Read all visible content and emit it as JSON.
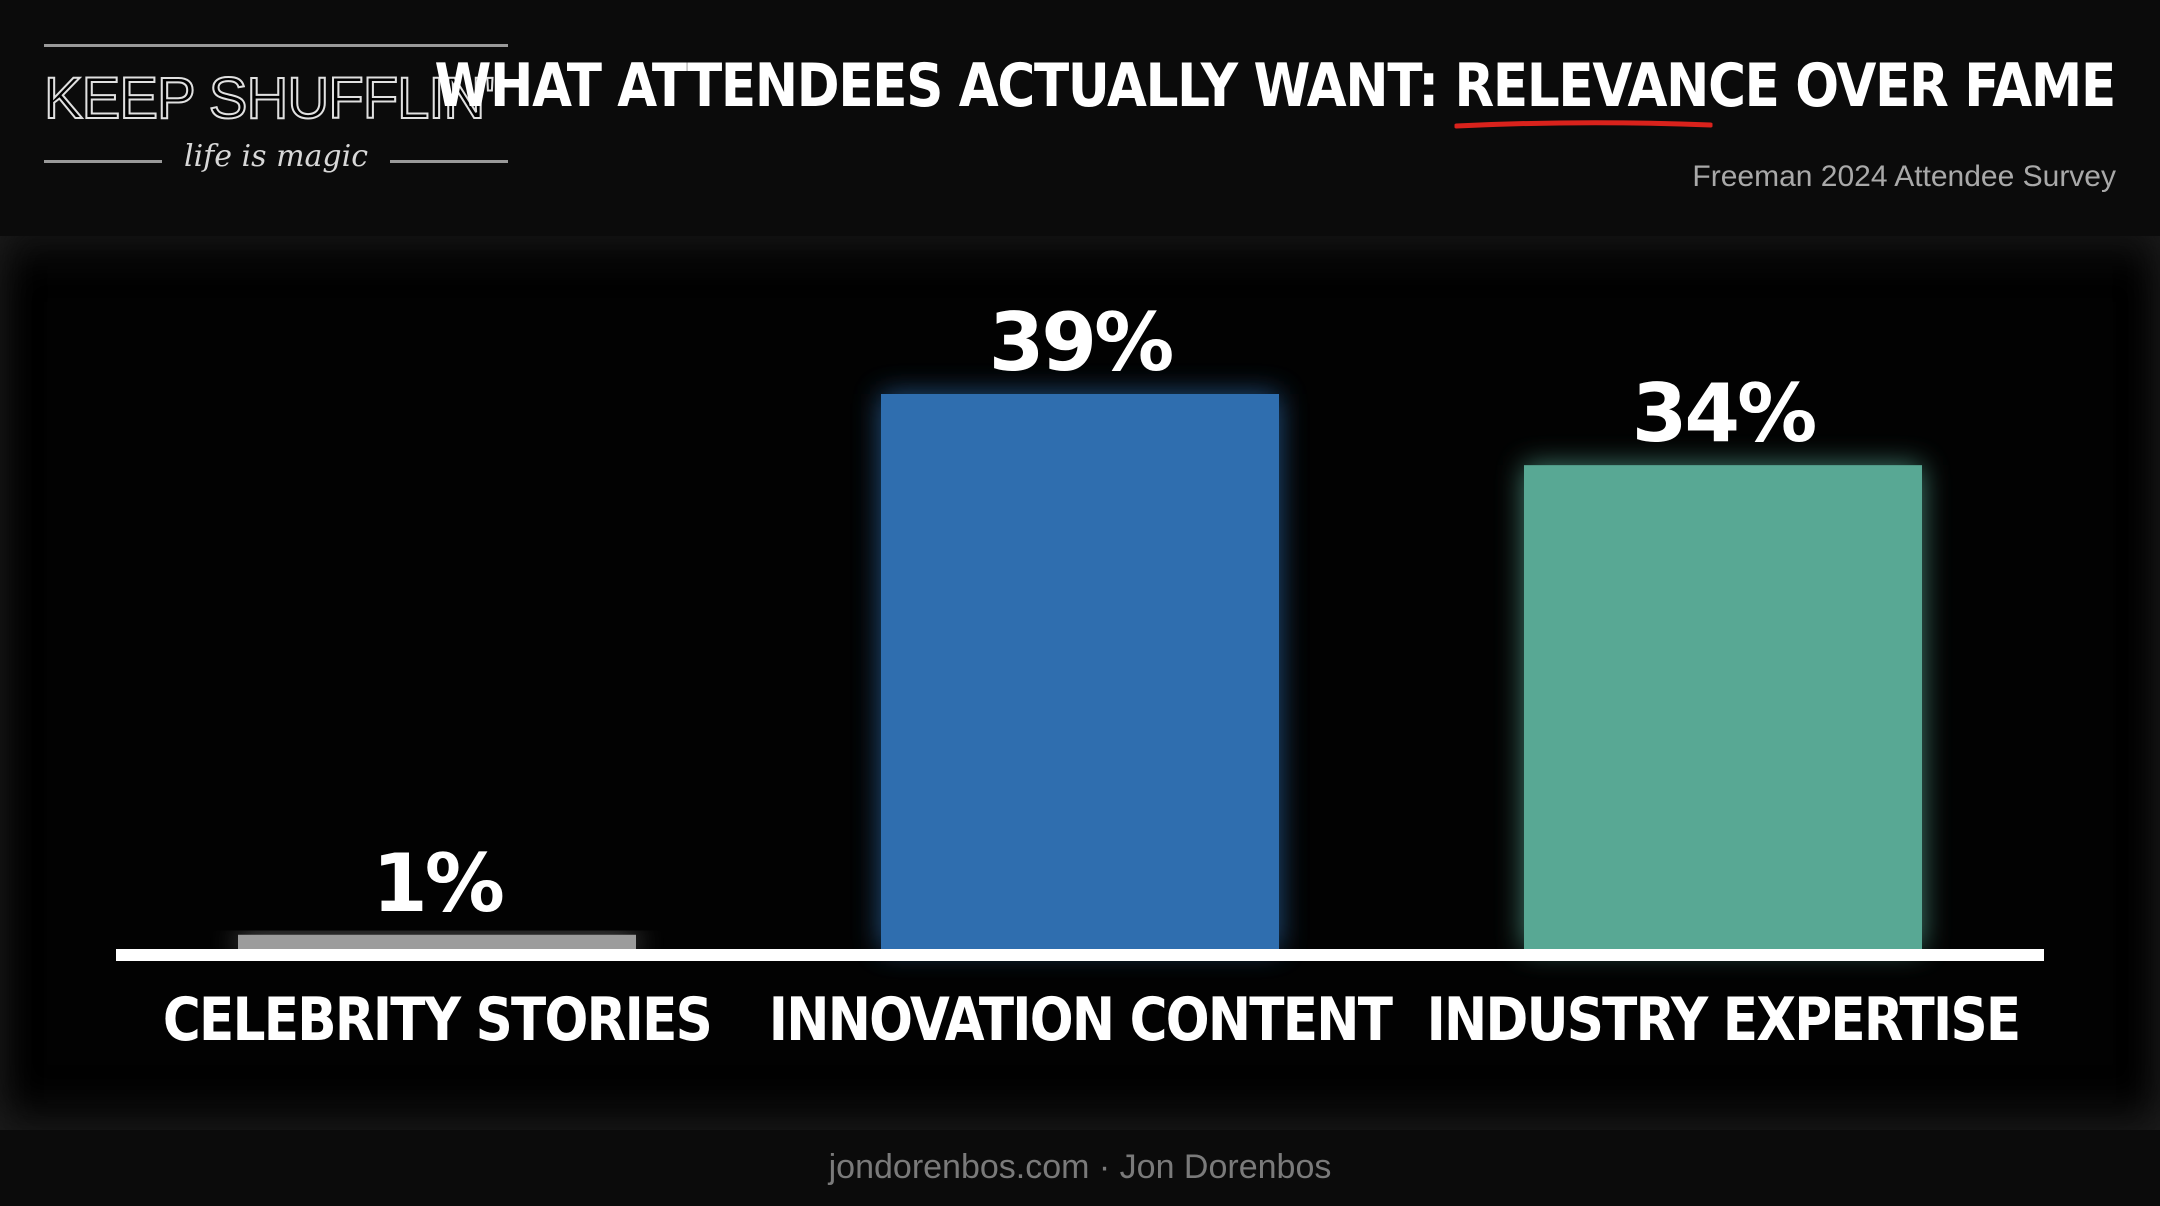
{
  "header": {
    "logo_text": "KEEP SHUFFLIN'",
    "logo_tagline": "life is magic",
    "title_prefix": "WHAT ATTENDEES ACTUALLY WANT: ",
    "title_highlight": "RELEVANCE",
    "title_suffix": " OVER FAME",
    "subtitle": "Freeman 2024 Attendee Survey"
  },
  "footer": {
    "text": "jondorenbos.com · Jon Dorenbos"
  },
  "colors": {
    "underline": "#d9221c",
    "bar_celebrity": "#9c9c9c",
    "bar_innovation": "#2f6eaf",
    "bar_industry": "#58a894",
    "baseline": "#ffffff"
  },
  "chart_data": {
    "type": "bar",
    "categories": [
      "CELEBRITY STORIES",
      "INNOVATION CONTENT",
      "INDUSTRY EXPERTISE"
    ],
    "values": [
      1,
      39,
      34
    ],
    "data_labels": [
      "1%",
      "39%",
      "34%"
    ],
    "ylim": [
      0,
      39
    ],
    "grid": false,
    "legend": "none"
  }
}
